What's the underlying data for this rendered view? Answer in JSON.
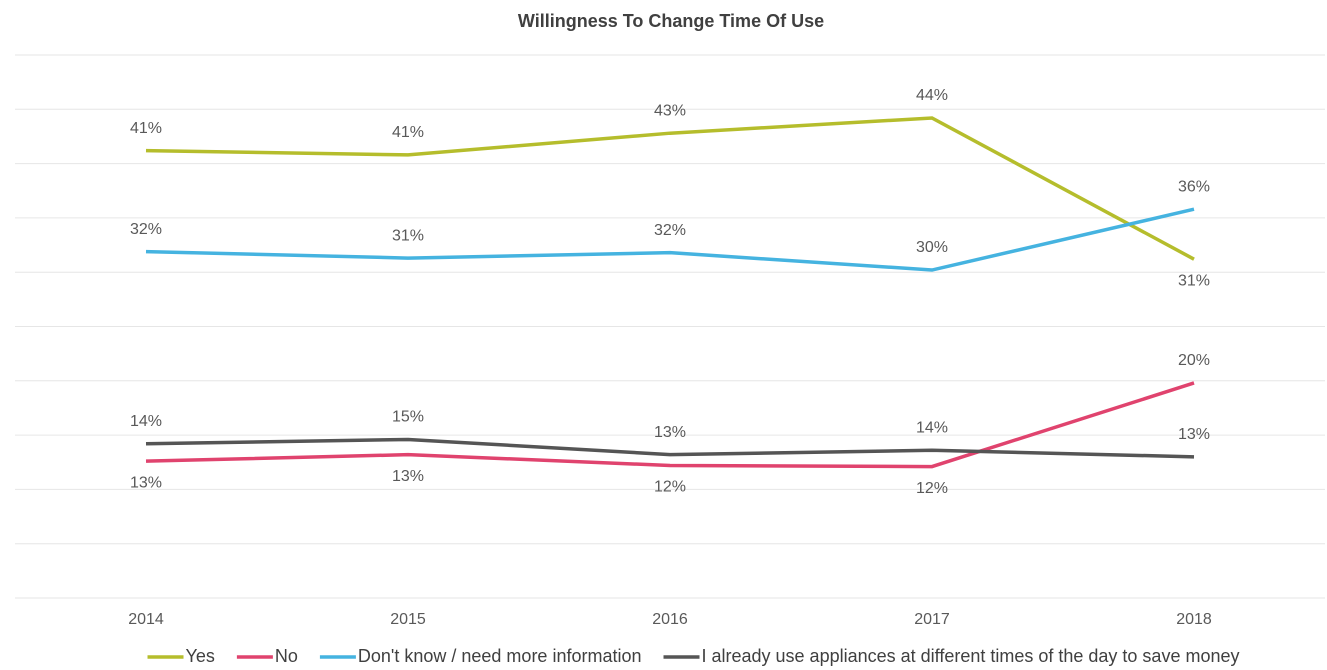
{
  "chart_data": {
    "type": "line",
    "title": "Willingness To Change Time Of Use",
    "categories": [
      "2014",
      "2015",
      "2016",
      "2017",
      "2018"
    ],
    "ylim": [
      0,
      50
    ],
    "yticks": [
      0,
      5,
      10,
      15,
      20,
      25,
      30,
      35,
      40,
      45,
      50
    ],
    "grid": true,
    "legend": "bottom",
    "series": [
      {
        "name": "Yes",
        "color": "#b5bd2c",
        "values": [
          41.2,
          40.8,
          42.8,
          44.2,
          31.2
        ],
        "value_labels": [
          "41%",
          "41%",
          "43%",
          "44%",
          "31%"
        ]
      },
      {
        "name": "No",
        "color": "#e0436e",
        "values": [
          12.6,
          13.2,
          12.2,
          12.1,
          19.8
        ],
        "value_labels": [
          "13%",
          "13%",
          "12%",
          "12%",
          "20%"
        ]
      },
      {
        "name": "Don't know / need more information",
        "color": "#45b3e0",
        "values": [
          31.9,
          31.3,
          31.8,
          30.2,
          35.8
        ],
        "value_labels": [
          "32%",
          "31%",
          "32%",
          "30%",
          "36%"
        ]
      },
      {
        "name": "I already use appliances at different times of the day to save money",
        "color": "#555555",
        "values": [
          14.2,
          14.6,
          13.2,
          13.6,
          13.0
        ],
        "value_labels": [
          "14%",
          "15%",
          "13%",
          "14%",
          "13%"
        ]
      }
    ]
  }
}
